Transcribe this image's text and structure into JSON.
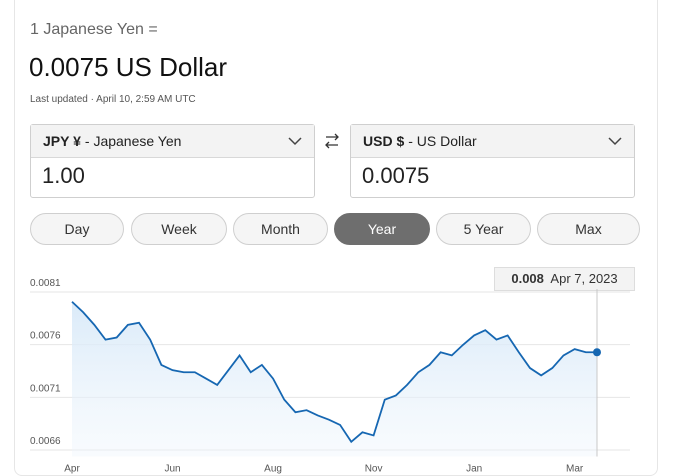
{
  "header": {
    "base": "1 Japanese Yen =",
    "result": "0.0075 US Dollar",
    "updated": "Last updated · April 10, 2:59 AM UTC"
  },
  "from": {
    "code": "JPY ¥",
    "name": "- Japanese Yen",
    "amount": "1.00"
  },
  "to": {
    "code": "USD $",
    "name": "- US Dollar",
    "amount": "0.0075"
  },
  "ranges": [
    "Day",
    "Week",
    "Month",
    "Year",
    "5 Year",
    "Max"
  ],
  "selected_range": 3,
  "tooltip": {
    "value": "0.008",
    "date": "Apr 7, 2023"
  },
  "chart_data": {
    "type": "line",
    "categories": [
      "Apr",
      null,
      null,
      null,
      null,
      null,
      null,
      null,
      null,
      "Jun",
      null,
      null,
      null,
      null,
      null,
      null,
      null,
      null,
      "Aug",
      null,
      null,
      null,
      null,
      null,
      null,
      null,
      null,
      "Nov",
      null,
      null,
      null,
      null,
      null,
      null,
      null,
      null,
      "Jan",
      null,
      null,
      null,
      null,
      null,
      null,
      null,
      null,
      "Mar",
      null,
      null
    ],
    "values": [
      0.00797,
      0.00787,
      0.00775,
      0.00761,
      0.00763,
      0.00775,
      0.00777,
      0.00761,
      0.00737,
      0.00732,
      0.0073,
      0.0073,
      0.00724,
      0.00718,
      0.00732,
      0.00746,
      0.0073,
      0.00737,
      0.00724,
      0.00704,
      0.00692,
      0.00694,
      0.00689,
      0.00685,
      0.0068,
      0.00664,
      0.00673,
      0.0067,
      0.00704,
      0.00708,
      0.00718,
      0.0073,
      0.00737,
      0.00749,
      0.00746,
      0.00756,
      0.00765,
      0.0077,
      0.00761,
      0.00765,
      0.00749,
      0.00734,
      0.00727,
      0.00734,
      0.00746,
      0.00752,
      0.00749,
      0.00749
    ],
    "color": "#1667b2",
    "ylim": [
      0.0065,
      0.0082
    ],
    "yticks": [
      0.0081,
      0.0076,
      0.0071,
      0.0066
    ],
    "grid": true
  }
}
